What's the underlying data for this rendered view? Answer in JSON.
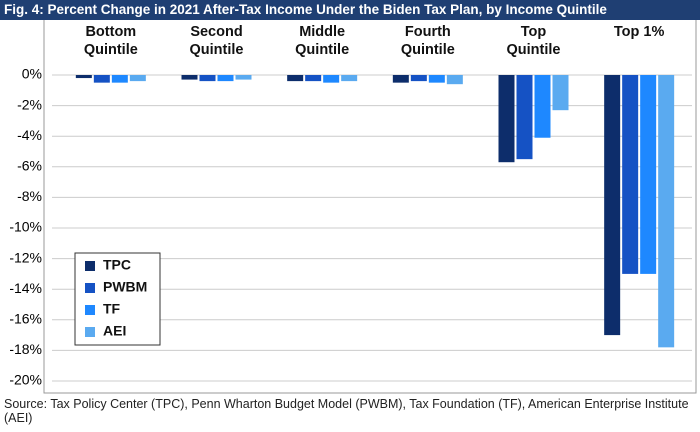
{
  "chart_data": {
    "type": "bar",
    "title": "Fig. 4: Percent Change in 2021 After-Tax Income Under the Biden Tax Plan, by Income Quintile",
    "categories": [
      "Bottom Quintile",
      "Second Quintile",
      "Middle Quintile",
      "Fourth Quintile",
      "Top Quintile",
      "Top 1%"
    ],
    "series": [
      {
        "name": "TPC",
        "color": "#0d2d6b",
        "values": [
          -0.2,
          -0.3,
          -0.4,
          -0.5,
          -5.7,
          -17
        ]
      },
      {
        "name": "PWBM",
        "color": "#1552c4",
        "values": [
          -0.5,
          -0.4,
          -0.4,
          -0.4,
          -5.5,
          -13
        ]
      },
      {
        "name": "TF",
        "color": "#1e88ff",
        "values": [
          -0.5,
          -0.4,
          -0.5,
          -0.5,
          -4.1,
          -13
        ]
      },
      {
        "name": "AEI",
        "color": "#5aaaf0",
        "values": [
          -0.4,
          -0.3,
          -0.4,
          -0.6,
          -2.3,
          -17.8
        ]
      }
    ],
    "ylim": [
      -20,
      0
    ],
    "yticks": [
      {
        "value": 0,
        "label": "0%"
      },
      {
        "value": -2,
        "label": "-2%"
      },
      {
        "value": -4,
        "label": "-4%"
      },
      {
        "value": -6,
        "label": "-6%"
      },
      {
        "value": -8,
        "label": "-8%"
      },
      {
        "value": -10,
        "label": "-10%"
      },
      {
        "value": -12,
        "label": "-12%"
      },
      {
        "value": -14,
        "label": "-14%"
      },
      {
        "value": -16,
        "label": "-16%"
      },
      {
        "value": -18,
        "label": "-18%"
      },
      {
        "value": -20,
        "label": "-20%"
      }
    ],
    "grid": true,
    "legend": "lower left",
    "source": "Source: Tax Policy Center (TPC), Penn Wharton Budget Model (PWBM), Tax Foundation (TF), American Enterprise Institute (AEI)"
  }
}
